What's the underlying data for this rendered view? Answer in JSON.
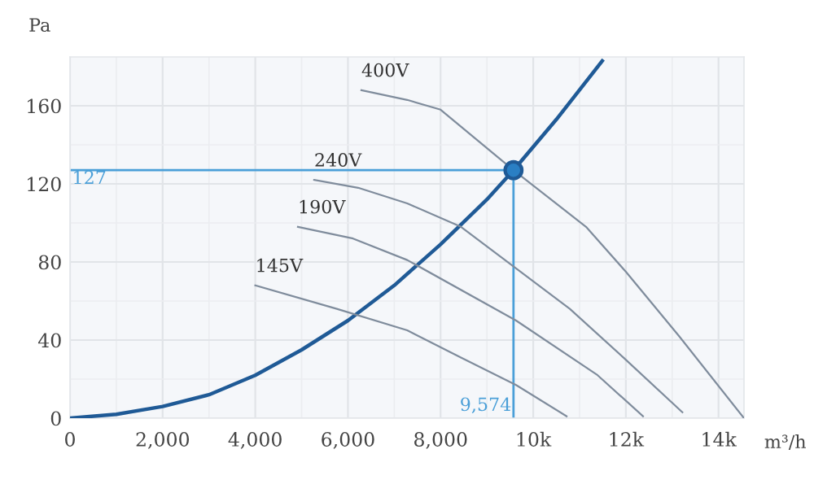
{
  "chart_data": {
    "type": "line",
    "xlabel": "m³/h",
    "ylabel": "Pa",
    "xlim": [
      0,
      14550
    ],
    "ylim": [
      0,
      185
    ],
    "xticks": [
      0,
      {
        "value": 2000,
        "label": "2,000"
      },
      {
        "value": 4000,
        "label": "4,000"
      },
      {
        "value": 6000,
        "label": "6,000"
      },
      {
        "value": 8000,
        "label": "8,000"
      },
      {
        "value": 10000,
        "label": "10k"
      },
      {
        "value": 12000,
        "label": "12k"
      },
      {
        "value": 14000,
        "label": "14k"
      }
    ],
    "yticks": [
      0,
      40,
      80,
      120,
      160
    ],
    "grid": true,
    "marker": "none",
    "line_style": "solid",
    "series": [
      {
        "color": "#1f5a96",
        "x": [
          0,
          1000,
          2000,
          3000,
          4000,
          5000,
          6000,
          7000,
          8000,
          9000,
          9574,
          10500,
          11490
        ],
        "values": [
          0,
          2,
          6,
          12,
          22,
          35,
          50,
          68,
          89,
          112,
          127,
          153,
          183
        ]
      },
      {
        "name": "400V",
        "color": "#7f8c9c",
        "x": [
          6290,
          7280,
          8000,
          9574,
          11140,
          12000,
          13150,
          14550
        ],
        "values": [
          168,
          163,
          158,
          127,
          98,
          75,
          42,
          0
        ]
      },
      {
        "name": "240V",
        "color": "#7f8c9c",
        "x": [
          5270,
          6220,
          7280,
          8440,
          10790,
          11950,
          13220
        ],
        "values": [
          122,
          118,
          110,
          98,
          56,
          31,
          3
        ]
      },
      {
        "name": "190V",
        "color": "#7f8c9c",
        "x": [
          4920,
          6110,
          7280,
          9630,
          11390,
          12370
        ],
        "values": [
          98,
          92,
          81,
          50,
          22,
          1
        ]
      },
      {
        "name": "145V",
        "color": "#7f8c9c",
        "x": [
          4000,
          5760,
          7280,
          8440,
          9630,
          10720
        ],
        "values": [
          68,
          56,
          45,
          31,
          17,
          1
        ]
      },
      {
        "type": "scatter",
        "marker": "circle",
        "color": "#2a7fc4",
        "x": [
          9574
        ],
        "values": [
          127
        ]
      }
    ],
    "ref_lines": [
      {
        "axis": "y",
        "value": 127,
        "label": "127",
        "color": "#4a9fd8"
      },
      {
        "axis": "x",
        "value": 9574,
        "label": "9,574",
        "color": "#4a9fd8"
      }
    ]
  }
}
